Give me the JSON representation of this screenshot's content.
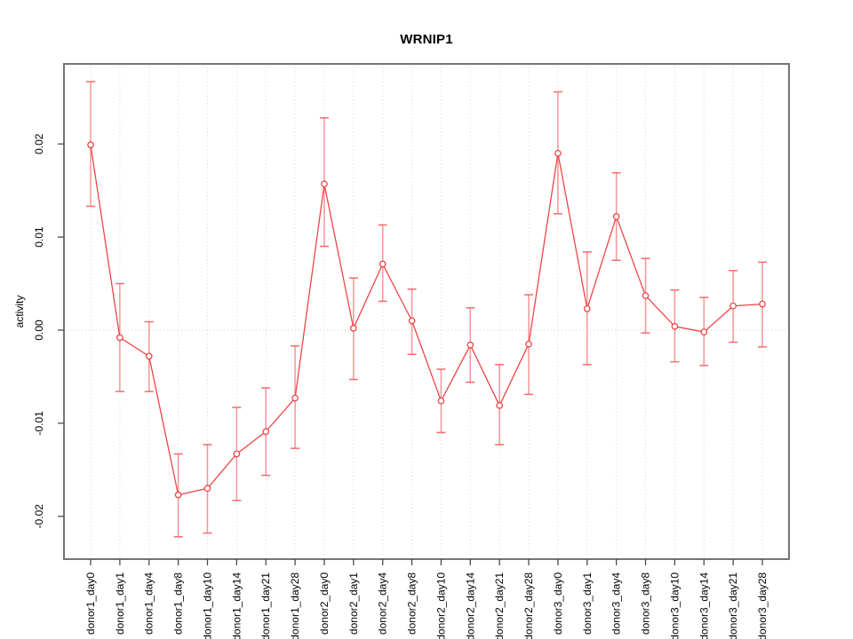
{
  "chart_data": {
    "type": "line",
    "title": "WRNIP1",
    "xlabel": "",
    "ylabel": "activity",
    "ylim": [
      -0.0246,
      0.0286
    ],
    "yticks": [
      -0.02,
      -0.01,
      0.0,
      0.01,
      0.02
    ],
    "ytick_labels": [
      "-0.02",
      "-0.01",
      "0.00",
      "0.01",
      "0.02"
    ],
    "grid": "vertical dotted gridline at every category; dotted horizontal line at y=0",
    "legend": "none",
    "marker": "open-circle",
    "error_bars": true,
    "categories": [
      "donor1_day0",
      "donor1_day1",
      "donor1_day4",
      "donor1_day8",
      "donor1_day10",
      "donor1_day14",
      "donor1_day21",
      "donor1_day28",
      "donor2_day0",
      "donor2_day1",
      "donor2_day4",
      "donor2_day8",
      "donor2_day10",
      "donor2_day14",
      "donor2_day21",
      "donor2_day28",
      "donor3_day0",
      "donor3_day1",
      "donor3_day4",
      "donor3_day8",
      "donor3_day10",
      "donor3_day14",
      "donor3_day21",
      "donor3_day28"
    ],
    "series": [
      {
        "name": "activity",
        "values": [
          0.0199,
          -0.0008,
          -0.0028,
          -0.0177,
          -0.017,
          -0.0133,
          -0.0109,
          -0.0073,
          0.0157,
          0.0002,
          0.0071,
          0.001,
          -0.0076,
          -0.0016,
          -0.0081,
          -0.0015,
          0.019,
          0.0023,
          0.0122,
          0.0037,
          0.0004,
          -0.0002,
          0.0026,
          0.0028
        ],
        "upper": [
          0.0267,
          0.005,
          0.0009,
          -0.0133,
          -0.0123,
          -0.0083,
          -0.0062,
          -0.0017,
          0.0228,
          0.0056,
          0.0113,
          0.0044,
          -0.0042,
          0.0024,
          -0.0037,
          0.0038,
          0.0256,
          0.0084,
          0.0169,
          0.0077,
          0.0043,
          0.0035,
          0.0064,
          0.0073
        ],
        "lower": [
          0.0133,
          -0.0066,
          -0.0066,
          -0.0222,
          -0.0218,
          -0.0183,
          -0.0156,
          -0.0127,
          0.009,
          -0.0053,
          0.0031,
          -0.0026,
          -0.011,
          -0.0056,
          -0.0123,
          -0.0069,
          0.0125,
          -0.0037,
          0.0075,
          -0.0003,
          -0.0034,
          -0.0038,
          -0.0013,
          -0.0018
        ]
      }
    ],
    "colors": {
      "line": "#ee4547",
      "marker_stroke": "#ee4547",
      "marker_fill": "#ffffff",
      "error_bar_stem": "#f59597",
      "error_bar_cap": "#f26b6d",
      "grid": "#d9d9d9",
      "zero_line": "#cfcfcf",
      "frame": "#757575",
      "tick": "#4d4d4d",
      "text": "#000000",
      "background": "#ffffff"
    }
  }
}
